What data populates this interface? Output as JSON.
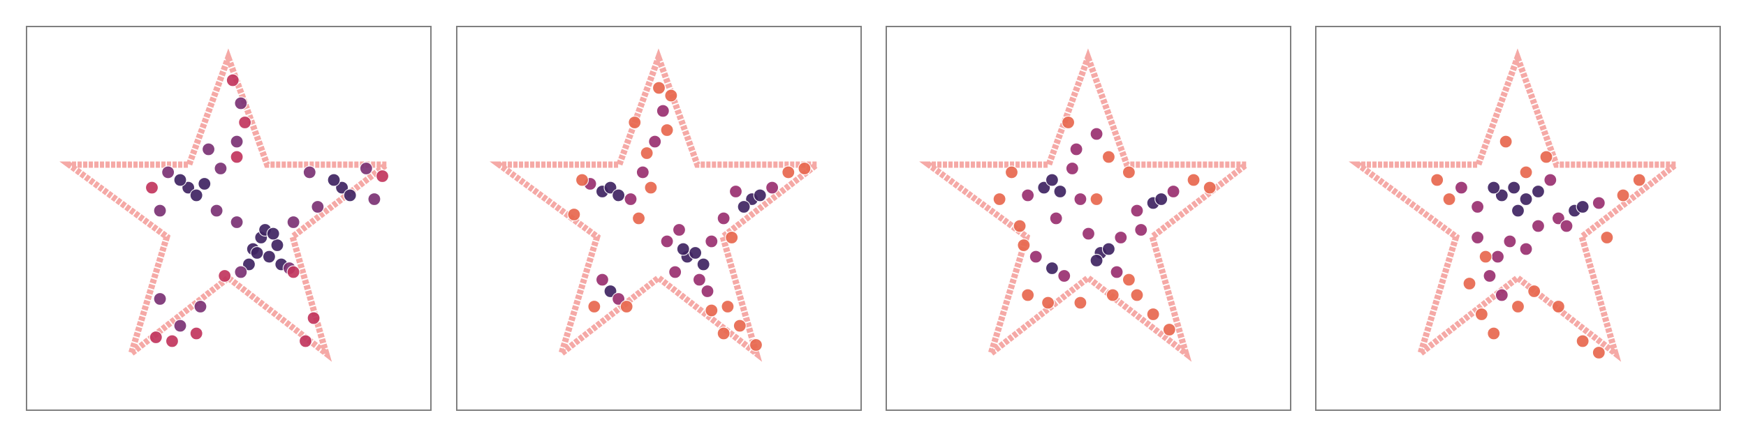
{
  "chart_data": [
    {
      "type": "scatter",
      "xlim": [
        0,
        1
      ],
      "ylim": [
        0,
        1
      ],
      "series": [
        {
          "color": "#3f2462",
          "x": [
            0.56,
            0.58,
            0.6,
            0.62,
            0.55,
            0.59,
            0.63,
            0.57,
            0.61,
            0.4,
            0.42,
            0.38,
            0.44,
            0.78,
            0.8,
            0.76
          ],
          "y": [
            0.42,
            0.45,
            0.4,
            0.43,
            0.38,
            0.47,
            0.38,
            0.41,
            0.46,
            0.58,
            0.56,
            0.6,
            0.59,
            0.58,
            0.56,
            0.6
          ]
        },
        {
          "color": "#7b3275",
          "x": [
            0.52,
            0.66,
            0.65,
            0.53,
            0.33,
            0.48,
            0.35,
            0.47,
            0.7,
            0.86,
            0.72,
            0.84,
            0.33,
            0.38,
            0.43,
            0.53,
            0.52,
            0.45
          ],
          "y": [
            0.49,
            0.49,
            0.37,
            0.36,
            0.52,
            0.63,
            0.62,
            0.52,
            0.62,
            0.55,
            0.53,
            0.63,
            0.29,
            0.22,
            0.27,
            0.8,
            0.7,
            0.68
          ]
        },
        {
          "color": "#c2365e",
          "x": [
            0.51,
            0.54,
            0.52,
            0.32,
            0.36,
            0.42,
            0.69,
            0.71,
            0.88,
            0.49,
            0.66,
            0.31
          ],
          "y": [
            0.86,
            0.75,
            0.66,
            0.19,
            0.18,
            0.2,
            0.18,
            0.24,
            0.61,
            0.35,
            0.36,
            0.58
          ]
        }
      ]
    },
    {
      "type": "scatter",
      "xlim": [
        0,
        1
      ],
      "ylim": [
        0,
        1
      ],
      "series": [
        {
          "color": "#3f2462",
          "x": [
            0.36,
            0.38,
            0.4,
            0.57,
            0.59,
            0.61,
            0.56,
            0.73,
            0.75,
            0.71,
            0.38
          ],
          "y": [
            0.57,
            0.58,
            0.56,
            0.4,
            0.41,
            0.38,
            0.42,
            0.55,
            0.56,
            0.53,
            0.31
          ]
        },
        {
          "color": "#9a3070",
          "x": [
            0.33,
            0.43,
            0.46,
            0.52,
            0.54,
            0.63,
            0.6,
            0.66,
            0.78,
            0.69,
            0.36,
            0.4,
            0.49,
            0.51,
            0.55,
            0.62
          ],
          "y": [
            0.59,
            0.55,
            0.62,
            0.44,
            0.36,
            0.44,
            0.34,
            0.5,
            0.58,
            0.57,
            0.34,
            0.29,
            0.7,
            0.78,
            0.47,
            0.31
          ]
        },
        {
          "color": "#e8684f",
          "x": [
            0.29,
            0.31,
            0.45,
            0.47,
            0.44,
            0.5,
            0.53,
            0.67,
            0.7,
            0.74,
            0.82,
            0.86,
            0.34,
            0.42,
            0.63,
            0.66,
            0.68,
            0.48,
            0.52
          ],
          "y": [
            0.51,
            0.6,
            0.5,
            0.67,
            0.75,
            0.84,
            0.82,
            0.27,
            0.22,
            0.17,
            0.62,
            0.63,
            0.27,
            0.27,
            0.26,
            0.2,
            0.45,
            0.58,
            0.73
          ]
        }
      ]
    },
    {
      "type": "scatter",
      "xlim": [
        0,
        1
      ],
      "ylim": [
        0,
        1
      ],
      "series": [
        {
          "color": "#3f2462",
          "x": [
            0.39,
            0.41,
            0.43,
            0.66,
            0.68,
            0.53,
            0.55,
            0.52,
            0.41
          ],
          "y": [
            0.58,
            0.6,
            0.57,
            0.54,
            0.55,
            0.41,
            0.42,
            0.39,
            0.37
          ]
        },
        {
          "color": "#9a3070",
          "x": [
            0.35,
            0.46,
            0.48,
            0.62,
            0.71,
            0.58,
            0.5,
            0.57,
            0.37,
            0.44,
            0.47,
            0.52,
            0.63,
            0.42
          ],
          "y": [
            0.56,
            0.63,
            0.55,
            0.52,
            0.57,
            0.45,
            0.46,
            0.36,
            0.4,
            0.35,
            0.68,
            0.72,
            0.47,
            0.5
          ]
        },
        {
          "color": "#e8684f",
          "x": [
            0.28,
            0.31,
            0.33,
            0.45,
            0.55,
            0.6,
            0.76,
            0.8,
            0.62,
            0.66,
            0.7,
            0.4,
            0.35,
            0.48,
            0.56,
            0.6,
            0.34,
            0.52
          ],
          "y": [
            0.55,
            0.62,
            0.48,
            0.75,
            0.66,
            0.62,
            0.6,
            0.58,
            0.3,
            0.25,
            0.21,
            0.28,
            0.3,
            0.28,
            0.3,
            0.34,
            0.43,
            0.55
          ]
        }
      ]
    },
    {
      "type": "scatter",
      "xlim": [
        0,
        1
      ],
      "ylim": [
        0,
        1
      ],
      "series": [
        {
          "color": "#3f2462",
          "x": [
            0.46,
            0.49,
            0.52,
            0.55,
            0.64,
            0.66,
            0.5,
            0.44
          ],
          "y": [
            0.56,
            0.58,
            0.55,
            0.57,
            0.52,
            0.53,
            0.52,
            0.58
          ]
        },
        {
          "color": "#9a3070",
          "x": [
            0.36,
            0.4,
            0.58,
            0.6,
            0.7,
            0.48,
            0.45,
            0.52,
            0.43,
            0.46,
            0.55,
            0.62,
            0.4
          ],
          "y": [
            0.58,
            0.53,
            0.6,
            0.5,
            0.54,
            0.44,
            0.4,
            0.42,
            0.35,
            0.3,
            0.48,
            0.48,
            0.45
          ]
        },
        {
          "color": "#e8684f",
          "x": [
            0.3,
            0.33,
            0.76,
            0.8,
            0.57,
            0.41,
            0.44,
            0.5,
            0.54,
            0.42,
            0.6,
            0.66,
            0.7,
            0.47,
            0.38,
            0.72,
            0.52
          ],
          "y": [
            0.6,
            0.55,
            0.56,
            0.6,
            0.66,
            0.25,
            0.2,
            0.27,
            0.31,
            0.4,
            0.27,
            0.18,
            0.15,
            0.7,
            0.33,
            0.45,
            0.62
          ]
        }
      ]
    }
  ]
}
